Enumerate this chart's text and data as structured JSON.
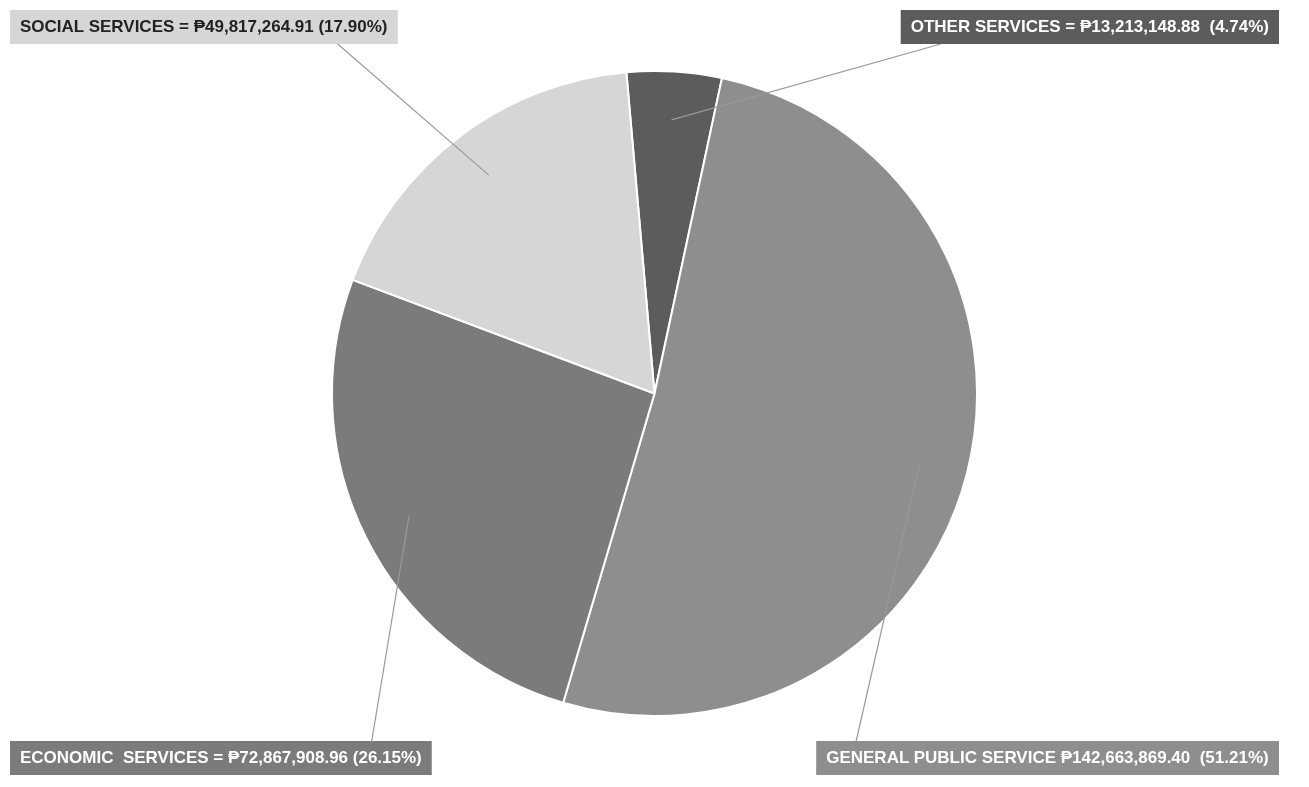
{
  "chart_data": {
    "type": "pie",
    "categories": [
      "OTHER SERVICES",
      "GENERAL PUBLIC SERVICE",
      "ECONOMIC  SERVICES",
      "SOCIAL SERVICES"
    ],
    "values": [
      13213148.88,
      142663869.4,
      72867908.96,
      49817264.91
    ],
    "value_labels": [
      "= ₱13,213,148.88  (4.74%)",
      "₱142,663,869.40  (51.21%)",
      "= ₱72,867,908.96 (26.15%)",
      "= ₱49,817,264.91 (17.90%)"
    ],
    "colors": [
      "#5c5c5c",
      "#8e8e8e",
      "#7b7b7b",
      "#d6d6d6"
    ],
    "legend": false
  }
}
